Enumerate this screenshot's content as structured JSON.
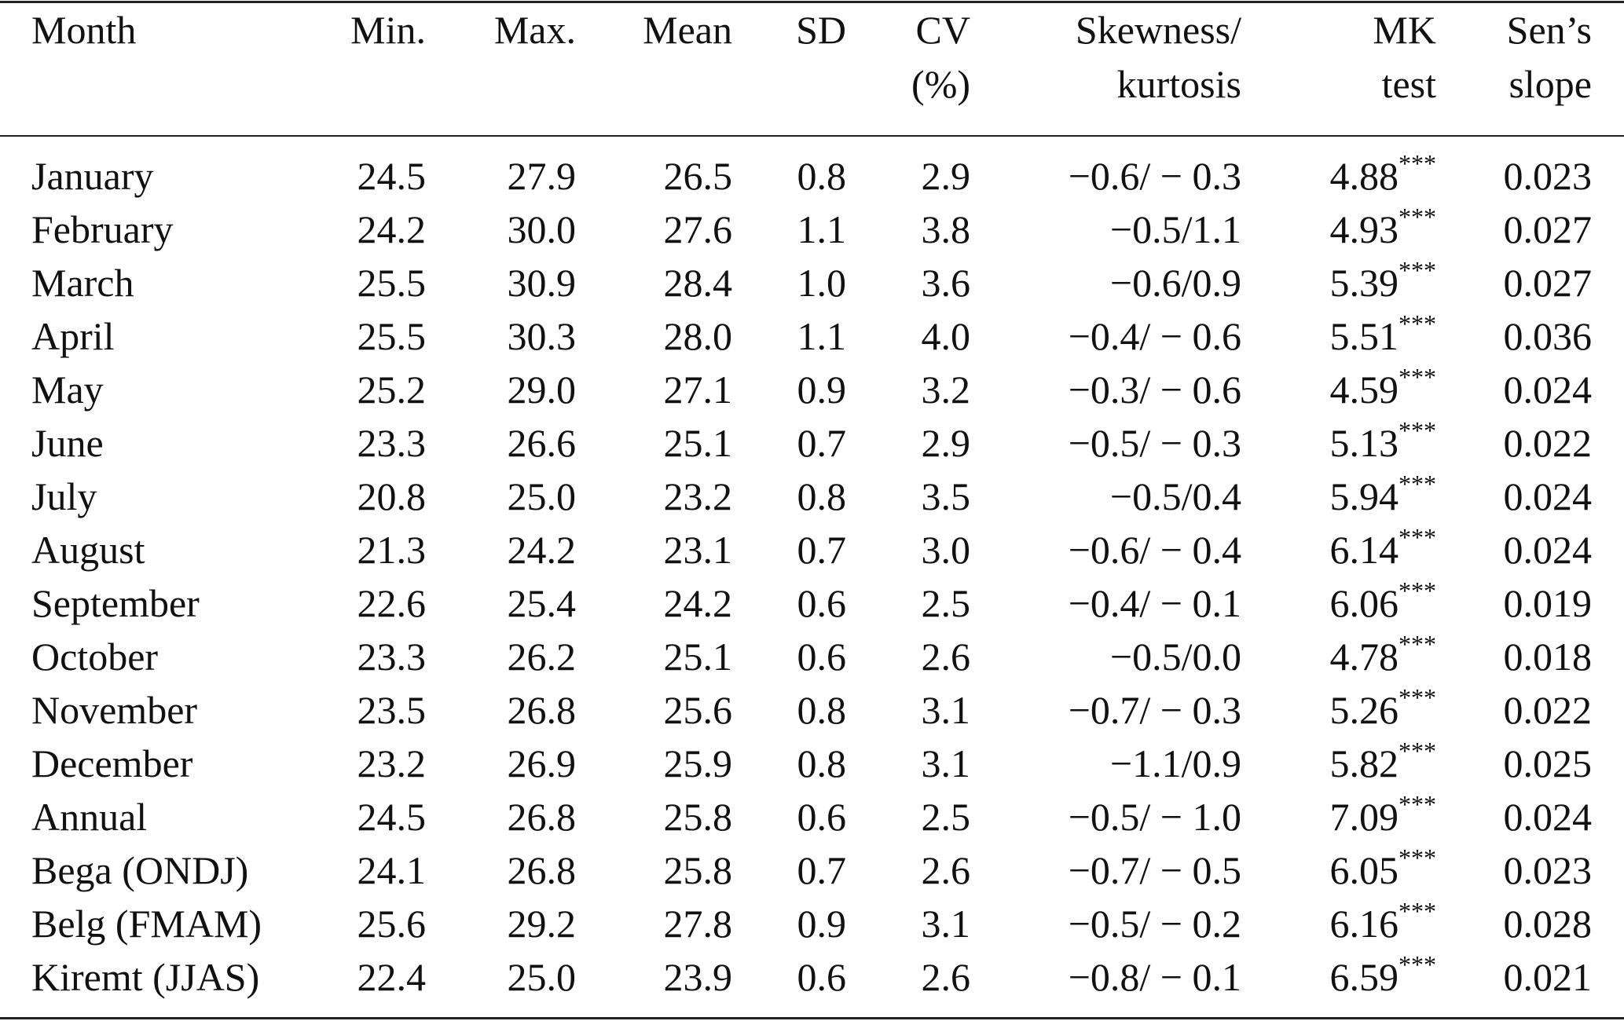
{
  "headers": {
    "month": "Month",
    "min": "Min.",
    "max": "Max.",
    "mean": "Mean",
    "sd": "SD",
    "cv_1": "CV",
    "cv_2": "(%)",
    "skew_1": "Skewness/",
    "skew_2": "kurtosis",
    "mk_1": "MK",
    "mk_2": "test",
    "sen_1": "Sen’s",
    "sen_2": "slope"
  },
  "rows": [
    {
      "month": "January",
      "min": "24.5",
      "max": "27.9",
      "mean": "26.5",
      "sd": "0.8",
      "cv": "2.9",
      "skew": "−0.6/ − 0.3",
      "mk": "4.88",
      "sig": "***",
      "sen": "0.023"
    },
    {
      "month": "February",
      "min": "24.2",
      "max": "30.0",
      "mean": "27.6",
      "sd": "1.1",
      "cv": "3.8",
      "skew": "−0.5/1.1",
      "mk": "4.93",
      "sig": "***",
      "sen": "0.027"
    },
    {
      "month": "March",
      "min": "25.5",
      "max": "30.9",
      "mean": "28.4",
      "sd": "1.0",
      "cv": "3.6",
      "skew": "−0.6/0.9",
      "mk": "5.39",
      "sig": "***",
      "sen": "0.027"
    },
    {
      "month": "April",
      "min": "25.5",
      "max": "30.3",
      "mean": "28.0",
      "sd": "1.1",
      "cv": "4.0",
      "skew": "−0.4/ − 0.6",
      "mk": "5.51",
      "sig": "***",
      "sen": "0.036"
    },
    {
      "month": "May",
      "min": "25.2",
      "max": "29.0",
      "mean": "27.1",
      "sd": "0.9",
      "cv": "3.2",
      "skew": "−0.3/ − 0.6",
      "mk": "4.59",
      "sig": "***",
      "sen": "0.024"
    },
    {
      "month": "June",
      "min": "23.3",
      "max": "26.6",
      "mean": "25.1",
      "sd": "0.7",
      "cv": "2.9",
      "skew": "−0.5/ − 0.3",
      "mk": "5.13",
      "sig": "***",
      "sen": "0.022"
    },
    {
      "month": "July",
      "min": "20.8",
      "max": "25.0",
      "mean": "23.2",
      "sd": "0.8",
      "cv": "3.5",
      "skew": "−0.5/0.4",
      "mk": "5.94",
      "sig": "***",
      "sen": "0.024"
    },
    {
      "month": "August",
      "min": "21.3",
      "max": "24.2",
      "mean": "23.1",
      "sd": "0.7",
      "cv": "3.0",
      "skew": "−0.6/ − 0.4",
      "mk": "6.14",
      "sig": "***",
      "sen": "0.024"
    },
    {
      "month": "September",
      "min": "22.6",
      "max": "25.4",
      "mean": "24.2",
      "sd": "0.6",
      "cv": "2.5",
      "skew": "−0.4/ − 0.1",
      "mk": "6.06",
      "sig": "***",
      "sen": "0.019"
    },
    {
      "month": "October",
      "min": "23.3",
      "max": "26.2",
      "mean": "25.1",
      "sd": "0.6",
      "cv": "2.6",
      "skew": "−0.5/0.0",
      "mk": "4.78",
      "sig": "***",
      "sen": "0.018"
    },
    {
      "month": "November",
      "min": "23.5",
      "max": "26.8",
      "mean": "25.6",
      "sd": "0.8",
      "cv": "3.1",
      "skew": "−0.7/ − 0.3",
      "mk": "5.26",
      "sig": "***",
      "sen": "0.022"
    },
    {
      "month": "December",
      "min": "23.2",
      "max": "26.9",
      "mean": "25.9",
      "sd": "0.8",
      "cv": "3.1",
      "skew": "−1.1/0.9",
      "mk": "5.82",
      "sig": "***",
      "sen": "0.025"
    },
    {
      "month": "Annual",
      "min": "24.5",
      "max": "26.8",
      "mean": "25.8",
      "sd": "0.6",
      "cv": "2.5",
      "skew": "−0.5/ − 1.0",
      "mk": "7.09",
      "sig": "***",
      "sen": "0.024"
    },
    {
      "month": "Bega (ONDJ)",
      "min": "24.1",
      "max": "26.8",
      "mean": "25.8",
      "sd": "0.7",
      "cv": "2.6",
      "skew": "−0.7/ − 0.5",
      "mk": "6.05",
      "sig": "***",
      "sen": "0.023"
    },
    {
      "month": "Belg (FMAM)",
      "min": "25.6",
      "max": "29.2",
      "mean": "27.8",
      "sd": "0.9",
      "cv": "3.1",
      "skew": "−0.5/ − 0.2",
      "mk": "6.16",
      "sig": "***",
      "sen": "0.028"
    },
    {
      "month": "Kiremt (JJAS)",
      "min": "22.4",
      "max": "25.0",
      "mean": "23.9",
      "sd": "0.6",
      "cv": "2.6",
      "skew": "−0.8/ − 0.1",
      "mk": "6.59",
      "sig": "***",
      "sen": "0.021"
    }
  ]
}
